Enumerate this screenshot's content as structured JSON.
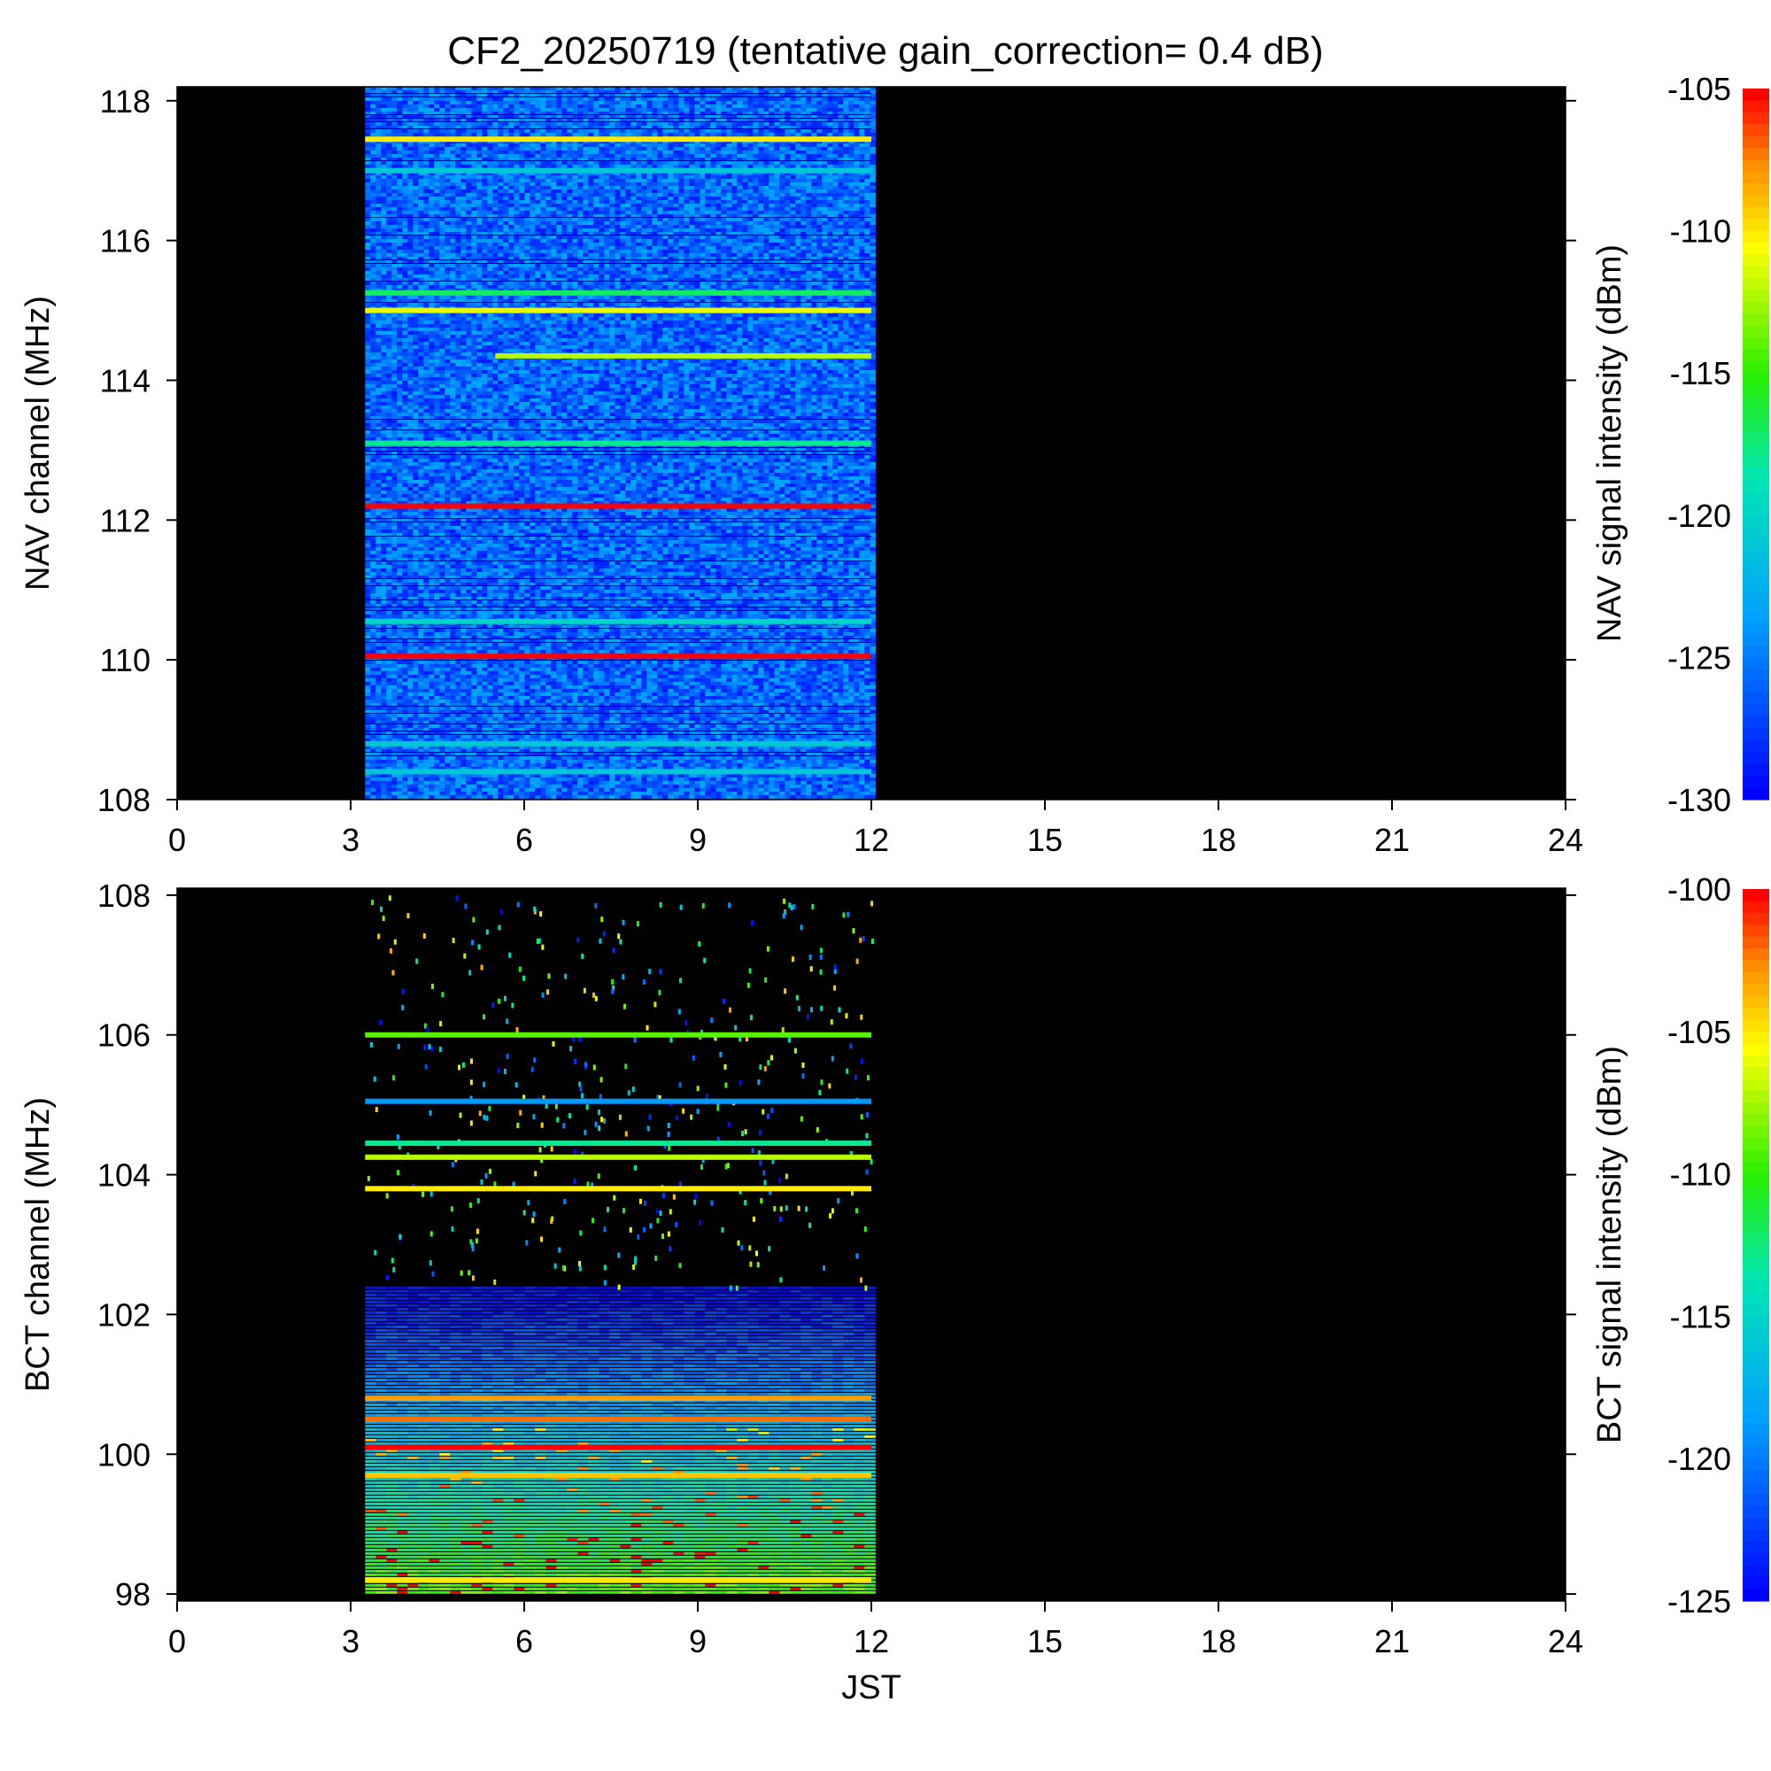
{
  "title": "CF2_20250719 (tentative gain_correction=  0.4 dB)",
  "chart_data": [
    {
      "type": "heatmap",
      "name": "NAV",
      "xlabel": "",
      "ylabel": "NAV channel (MHz)",
      "colorbar_label": "NAV signal intensity (dBm)",
      "xlim": [
        0,
        24
      ],
      "ylim": [
        108,
        118.2
      ],
      "x_ticks": [
        "0",
        "3",
        "6",
        "9",
        "12",
        "15",
        "18",
        "21",
        "24"
      ],
      "y_ticks": [
        "108",
        "110",
        "112",
        "114",
        "116",
        "118"
      ],
      "colorbar_range": [
        -130,
        -105
      ],
      "colorbar_ticks": [
        "-105",
        "-110",
        "-115",
        "-120",
        "-125",
        "-130"
      ],
      "data_time_range": [
        3.25,
        12.0
      ],
      "background_level": -126,
      "strong_channels": [
        {
          "freq": 117.45,
          "level": -110
        },
        {
          "freq": 117.0,
          "level": -121
        },
        {
          "freq": 115.25,
          "level": -117
        },
        {
          "freq": 115.0,
          "level": -111
        },
        {
          "freq": 114.35,
          "level": -112,
          "from": 5.5
        },
        {
          "freq": 113.1,
          "level": -118
        },
        {
          "freq": 112.2,
          "level": -105
        },
        {
          "freq": 110.55,
          "level": -120
        },
        {
          "freq": 110.05,
          "level": -105
        },
        {
          "freq": 108.8,
          "level": -121
        },
        {
          "freq": 108.4,
          "level": -121
        }
      ]
    },
    {
      "type": "heatmap",
      "name": "BCT",
      "xlabel": "JST",
      "ylabel": "BCT channel (MHz)",
      "colorbar_label": "BCT signal intensity (dBm)",
      "xlim": [
        0,
        24
      ],
      "ylim": [
        97.9,
        108.1
      ],
      "x_ticks": [
        "0",
        "3",
        "6",
        "9",
        "12",
        "15",
        "18",
        "21",
        "24"
      ],
      "y_ticks": [
        "98",
        "100",
        "102",
        "104",
        "106",
        "108"
      ],
      "colorbar_range": [
        -125,
        -100
      ],
      "colorbar_ticks": [
        "-100",
        "-105",
        "-110",
        "-115",
        "-120",
        "-125"
      ],
      "data_time_range": [
        3.25,
        12.0
      ],
      "continuous_band": [
        98.0,
        102.4
      ],
      "strong_channels": [
        {
          "freq": 106.0,
          "level": -109
        },
        {
          "freq": 105.05,
          "level": -119
        },
        {
          "freq": 104.45,
          "level": -113
        },
        {
          "freq": 104.25,
          "level": -107
        },
        {
          "freq": 103.8,
          "level": -105
        },
        {
          "freq": 100.1,
          "level": -100
        },
        {
          "freq": 100.5,
          "level": -102
        },
        {
          "freq": 100.8,
          "level": -103
        },
        {
          "freq": 99.7,
          "level": -104
        },
        {
          "freq": 98.2,
          "level": -105
        }
      ]
    }
  ]
}
